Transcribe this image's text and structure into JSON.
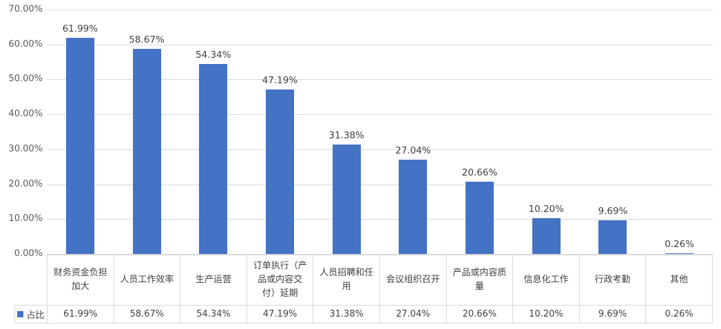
{
  "chart_data": {
    "type": "bar",
    "title": "",
    "xlabel": "",
    "ylabel": "",
    "categories": [
      "财务资金负担加大",
      "人员工作效率",
      "生产运营",
      "订单执行（产品或内容交付）延期",
      "人员招聘和任用",
      "会议组织召开",
      "产品或内容质量",
      "信息化工作",
      "行政考勤",
      "其他"
    ],
    "series": [
      {
        "name": "占比",
        "values": [
          61.99,
          58.67,
          54.34,
          47.19,
          31.38,
          27.04,
          20.66,
          10.2,
          9.69,
          0.26
        ]
      }
    ],
    "value_labels": [
      "61.99%",
      "58.67%",
      "54.34%",
      "47.19%",
      "31.38%",
      "27.04%",
      "20.66%",
      "10.20%",
      "9.69%",
      "0.26%"
    ],
    "ylim": [
      0,
      70
    ],
    "y_ticks": [
      "0.00%",
      "10.00%",
      "20.00%",
      "30.00%",
      "40.00%",
      "50.00%",
      "60.00%",
      "70.00%"
    ],
    "grid": true,
    "legend_position": "bottom-table",
    "bar_color": "#4472C4",
    "gridline_color": "#d9d9d9",
    "table_border_color": "#d9d9d9",
    "label_color": "#404040",
    "axis_label_color": "#595959",
    "background": "#ffffff"
  }
}
